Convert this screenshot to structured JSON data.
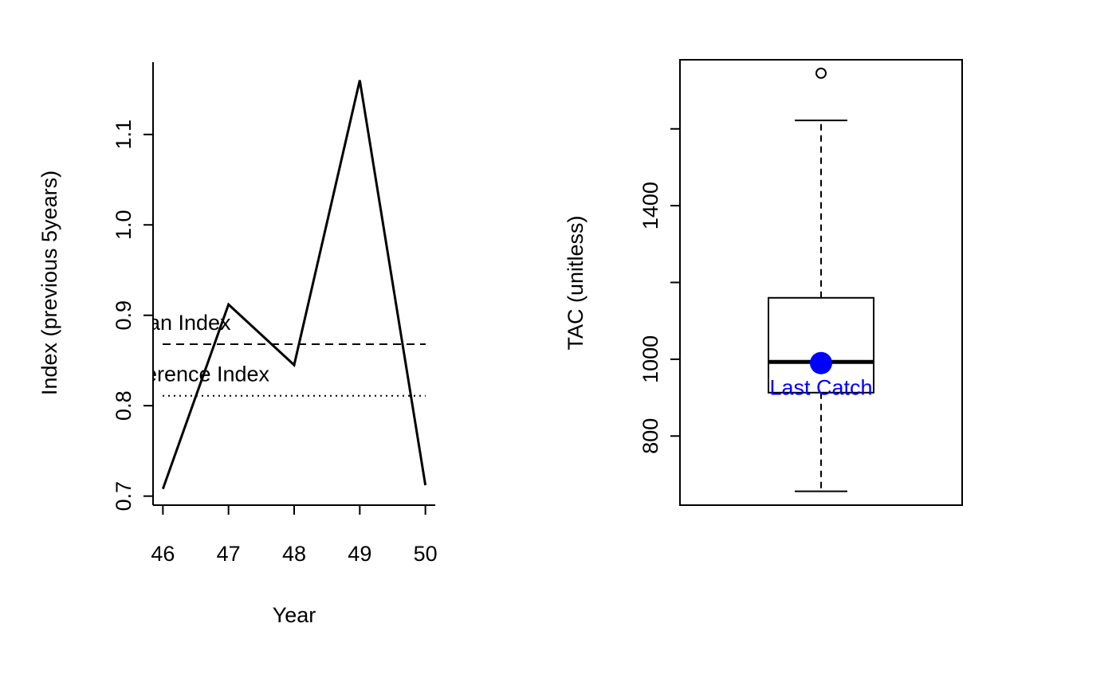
{
  "chart_data": [
    {
      "type": "line",
      "xlabel": "Year",
      "ylabel": "Index (previous 5years)",
      "x": [
        46,
        47,
        48,
        49,
        50
      ],
      "series": [
        {
          "values": [
            0.708,
            0.912,
            0.845,
            1.16,
            0.712
          ],
          "color": "#000000"
        }
      ],
      "xlim": [
        45.85,
        50.15
      ],
      "ylim": [
        0.69,
        1.18
      ],
      "xticks": [
        "46",
        "47",
        "48",
        "49",
        "50"
      ],
      "yticks": [
        "0.7",
        "0.8",
        "0.9",
        "1.0",
        "1.1"
      ],
      "ytick_values": [
        0.7,
        0.8,
        0.9,
        1.0,
        1.1
      ],
      "reference_lines": [
        {
          "label": "Mean Index",
          "value": 0.868,
          "style": "dashed"
        },
        {
          "label": "Reference Index",
          "value": 0.811,
          "style": "dotted"
        }
      ],
      "grid": false,
      "frame": "L-shaped axes"
    },
    {
      "type": "box",
      "xlabel": "",
      "ylabel": "TAC (unitless)",
      "ylim": [
        620,
        1780
      ],
      "yticks": [
        "800",
        "1000",
        "1400"
      ],
      "ytick_values": [
        800,
        1000,
        1400
      ],
      "minor_ytick_values": [
        1200,
        1600
      ],
      "box": {
        "whisker_low": 656,
        "q1": 913,
        "median": 993,
        "q3": 1160,
        "whisker_high": 1622,
        "outliers": [
          1745
        ]
      },
      "marker": {
        "label": "Last Catch",
        "value": 990,
        "color": "#0000ff"
      },
      "grid": false,
      "frame": "full box"
    }
  ]
}
